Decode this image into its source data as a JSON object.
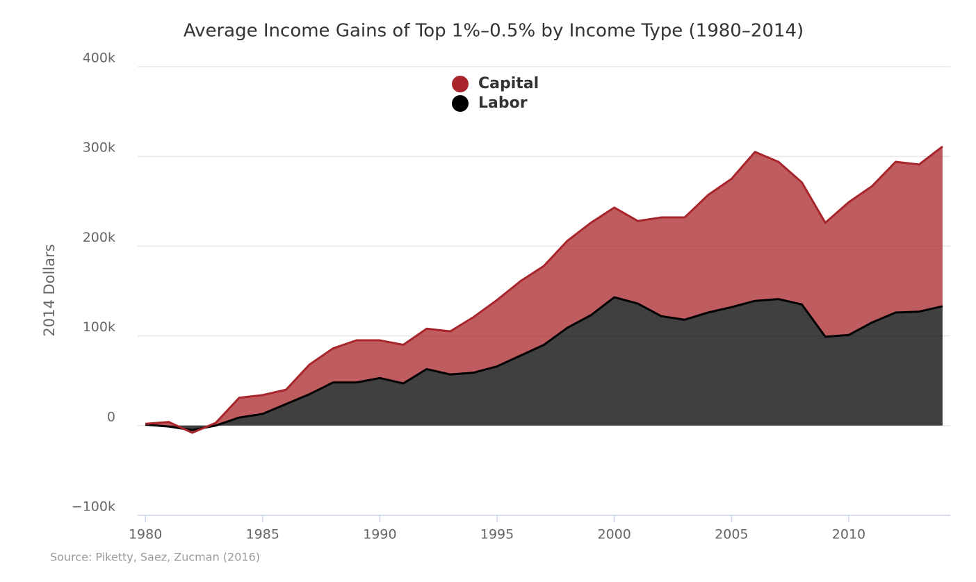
{
  "chart_data": {
    "type": "stacked-area",
    "title": "Average Income Gains of Top 1%–0.5% by Income Type (1980–2014)",
    "y_label": "2014 Dollars",
    "source": "Source: Piketty, Saez, Zucman (2016)",
    "x": [
      1980,
      1981,
      1982,
      1983,
      1984,
      1985,
      1986,
      1987,
      1988,
      1989,
      1990,
      1991,
      1992,
      1993,
      1994,
      1995,
      1996,
      1997,
      1998,
      1999,
      2000,
      2001,
      2002,
      2003,
      2004,
      2005,
      2006,
      2007,
      2008,
      2009,
      2010,
      2011,
      2012,
      2013,
      2014
    ],
    "series": [
      {
        "name": "Capital",
        "color": "#a8262b",
        "values": [
          1000,
          5000,
          -3000,
          3000,
          22000,
          21000,
          16000,
          33000,
          38000,
          47000,
          42000,
          43000,
          45000,
          48000,
          62000,
          74000,
          83000,
          88000,
          97000,
          103000,
          100000,
          92000,
          110000,
          114000,
          131000,
          143000,
          166000,
          153000,
          136000,
          127000,
          148000,
          152000,
          168000,
          164000,
          178000
        ]
      },
      {
        "name": "Labor",
        "color": "#000000",
        "values": [
          1000,
          -1000,
          -5000,
          0,
          9000,
          13000,
          24000,
          35000,
          48000,
          48000,
          53000,
          47000,
          63000,
          57000,
          59000,
          66000,
          78000,
          90000,
          109000,
          123000,
          143000,
          136000,
          122000,
          118000,
          126000,
          132000,
          139000,
          141000,
          135000,
          99000,
          101000,
          115000,
          126000,
          127000,
          133000
        ]
      }
    ],
    "xlim": [
      1979.67,
      2014.33
    ],
    "xticks": [
      1980,
      1985,
      1990,
      1995,
      2000,
      2005,
      2010
    ],
    "ylim": [
      -100000,
      400000
    ],
    "yticks": [
      {
        "value": -100000,
        "label": "−100k"
      },
      0,
      {
        "value": 100000,
        "label": "100k"
      },
      {
        "value": 200000,
        "label": "200k"
      },
      {
        "value": 300000,
        "label": "300k"
      },
      {
        "value": 400000,
        "label": "400k"
      }
    ],
    "grid": true
  }
}
